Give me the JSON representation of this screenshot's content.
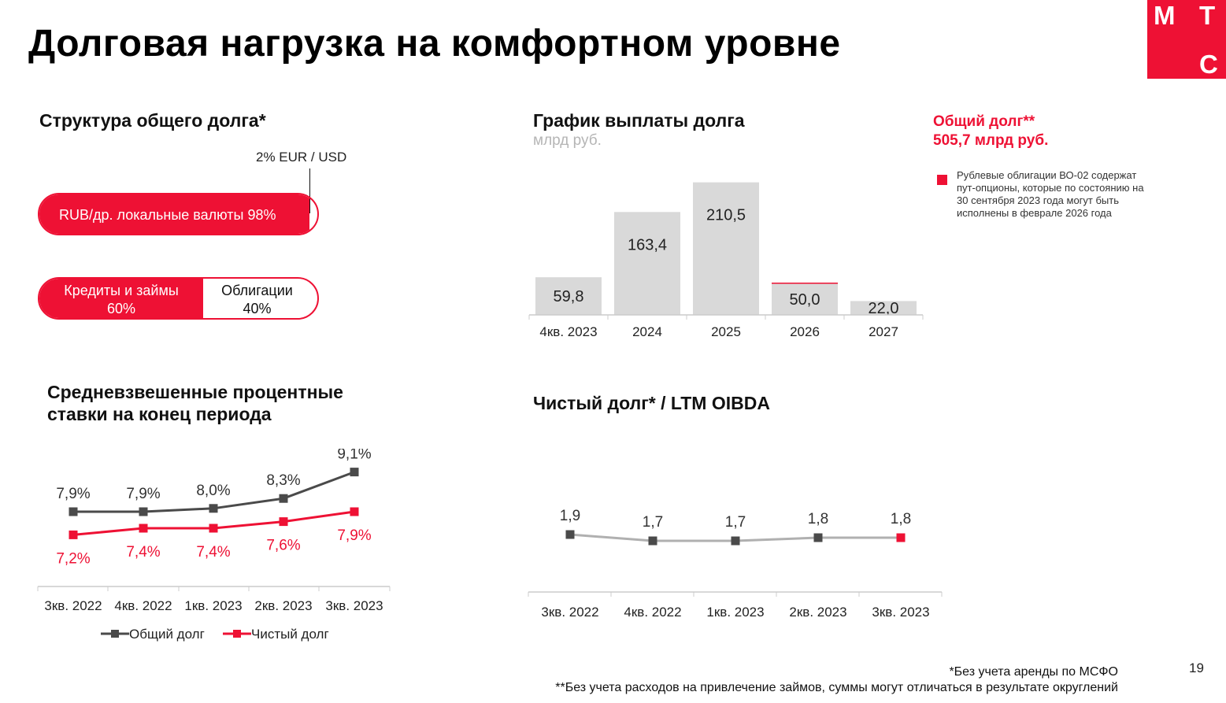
{
  "page": {
    "title": "Долговая нагрузка на комфортном уровне",
    "page_number": "19",
    "logo": {
      "letters": [
        "М",
        "Т",
        "С"
      ],
      "color": "#ee1134"
    },
    "footnote1": "*Без учета аренды по МСФО",
    "footnote2": "**Без учета расходов на привлечение займов, суммы могут отличаться в результате округлений"
  },
  "colors": {
    "accent": "#ee1134",
    "bar": "#d9d9d9",
    "dark": "#4a4a4a",
    "gray_line": "#b0b0b0"
  },
  "structure": {
    "title": "Структура общего долга*",
    "currency": {
      "main_label": "RUB/др. локальные валюты 98%",
      "main_share": 0.98,
      "minor_label": "2% EUR / USD",
      "minor_share": 0.02
    },
    "type": {
      "loans_label": "Кредиты и займы",
      "loans_value": "60%",
      "loans_share": 0.6,
      "bonds_label": "Облигации",
      "bonds_value": "40%"
    }
  },
  "repayment": {
    "title": "График выплаты долга",
    "unit": "млрд руб.",
    "total_label": "Общий долг**",
    "total_value": "505,7 млрд руб.",
    "legend_note": "Рублевые облигации ВО-02 содержат пут-опционы, которые по состоянию на 30 сентября 2023 года могут быть исполнены в феврале 2026 года"
  },
  "rates": {
    "title_line1": "Средневзвешенные процентные",
    "title_line2": "ставки на конец периода"
  },
  "leverage": {
    "title": "Чистый долг* / LTM OIBDA"
  },
  "chart_data": [
    {
      "type": "bar",
      "title": "График выплаты долга",
      "ylabel": "млрд руб.",
      "categories": [
        "4кв. 2023",
        "2024",
        "2025",
        "2026",
        "2027"
      ],
      "values": [
        59.8,
        163.4,
        210.5,
        50.0,
        22.0
      ],
      "labels": [
        "59,8",
        "163,4",
        "210,5",
        "50,0",
        "22,0"
      ],
      "highlight": {
        "category": "2026",
        "color": "#ee1134",
        "note": "put option"
      },
      "ylim": [
        0,
        215
      ]
    },
    {
      "type": "line",
      "title": "Средневзвешенные процентные ставки на конец периода",
      "categories": [
        "3кв. 2022",
        "4кв. 2022",
        "1кв. 2023",
        "2кв. 2023",
        "3кв. 2023"
      ],
      "series": [
        {
          "name": "Общий долг",
          "values": [
            7.9,
            7.9,
            8.0,
            8.3,
            9.1
          ],
          "labels": [
            "7,9%",
            "7,9%",
            "8,0%",
            "8,3%",
            "9,1%"
          ],
          "color": "#4a4a4a"
        },
        {
          "name": "Чистый долг",
          "values": [
            7.2,
            7.4,
            7.4,
            7.6,
            7.9
          ],
          "labels": [
            "7,2%",
            "7,4%",
            "7,4%",
            "7,6%",
            "7,9%"
          ],
          "color": "#ee1134"
        }
      ],
      "legend": "bottom",
      "ylim": [
        6.5,
        9.5
      ]
    },
    {
      "type": "line",
      "title": "Чистый долг* / LTM OIBDA",
      "categories": [
        "3кв. 2022",
        "4кв. 2022",
        "1кв. 2023",
        "2кв. 2023",
        "3кв. 2023"
      ],
      "values": [
        1.9,
        1.7,
        1.7,
        1.8,
        1.8
      ],
      "labels": [
        "1,9",
        "1,7",
        "1,7",
        "1,8",
        "1,8"
      ],
      "color": "#b0b0b0",
      "marker_color": "#4a4a4a",
      "last_marker_color": "#ee1134",
      "ylim": [
        0,
        3
      ]
    }
  ]
}
